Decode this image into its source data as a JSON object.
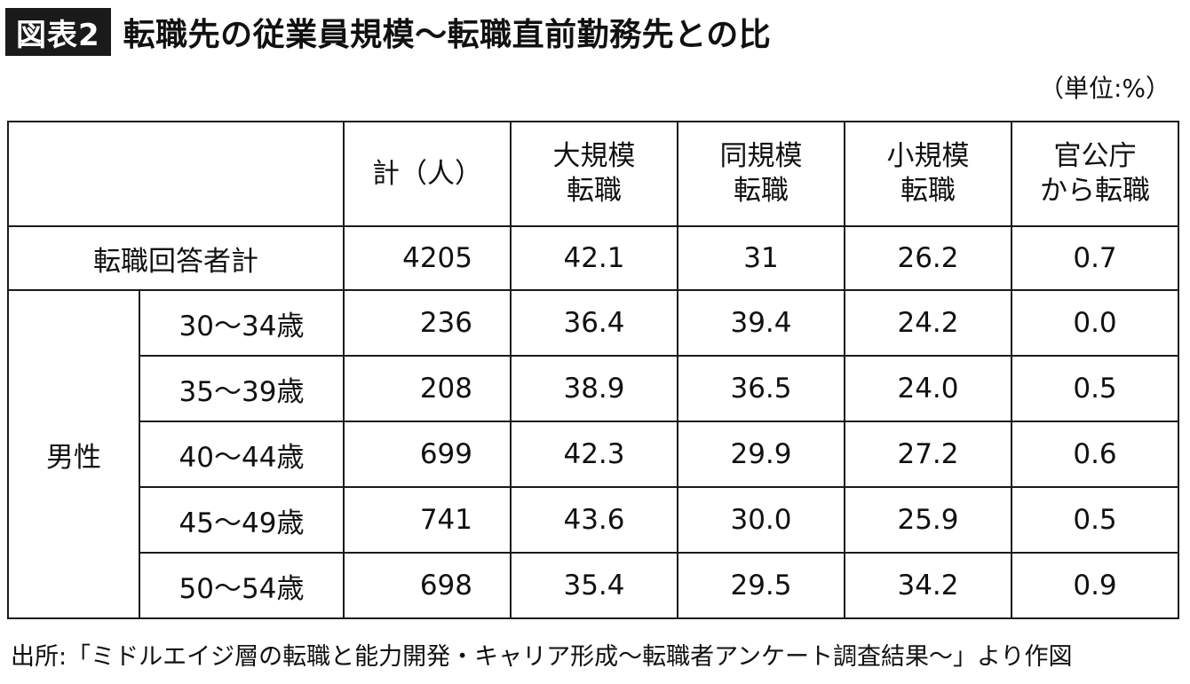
{
  "header": {
    "tag": "図表2",
    "title": "転職先の従業員規模～転職直前勤務先との比"
  },
  "unit_note": "（単位:%）",
  "table": {
    "columns": {
      "count": "計（人）",
      "large_line1": "大規模",
      "large_line2": "転職",
      "same_line1": "同規模",
      "same_line2": "転職",
      "small_line1": "小規模",
      "small_line2": "転職",
      "gov_line1": "官公庁",
      "gov_line2": "から転職"
    },
    "total_row": {
      "label": "転職回答者計",
      "count": "4205",
      "large": "42.1",
      "same": "31",
      "small": "26.2",
      "gov": "0.7"
    },
    "group_label": "男性",
    "rows": [
      {
        "age": "30～34歳",
        "count": "236",
        "large": "36.4",
        "same": "39.4",
        "small": "24.2",
        "gov": "0.0"
      },
      {
        "age": "35～39歳",
        "count": "208",
        "large": "38.9",
        "same": "36.5",
        "small": "24.0",
        "gov": "0.5"
      },
      {
        "age": "40～44歳",
        "count": "699",
        "large": "42.3",
        "same": "29.9",
        "small": "27.2",
        "gov": "0.6"
      },
      {
        "age": "45～49歳",
        "count": "741",
        "large": "43.6",
        "same": "30.0",
        "small": "25.9",
        "gov": "0.5"
      },
      {
        "age": "50～54歳",
        "count": "698",
        "large": "35.4",
        "same": "29.5",
        "small": "34.2",
        "gov": "0.9"
      }
    ]
  },
  "source": "出所:「ミドルエイジ層の転職と能力開発・キャリア形成～転職者アンケート調査結果～」より作図"
}
